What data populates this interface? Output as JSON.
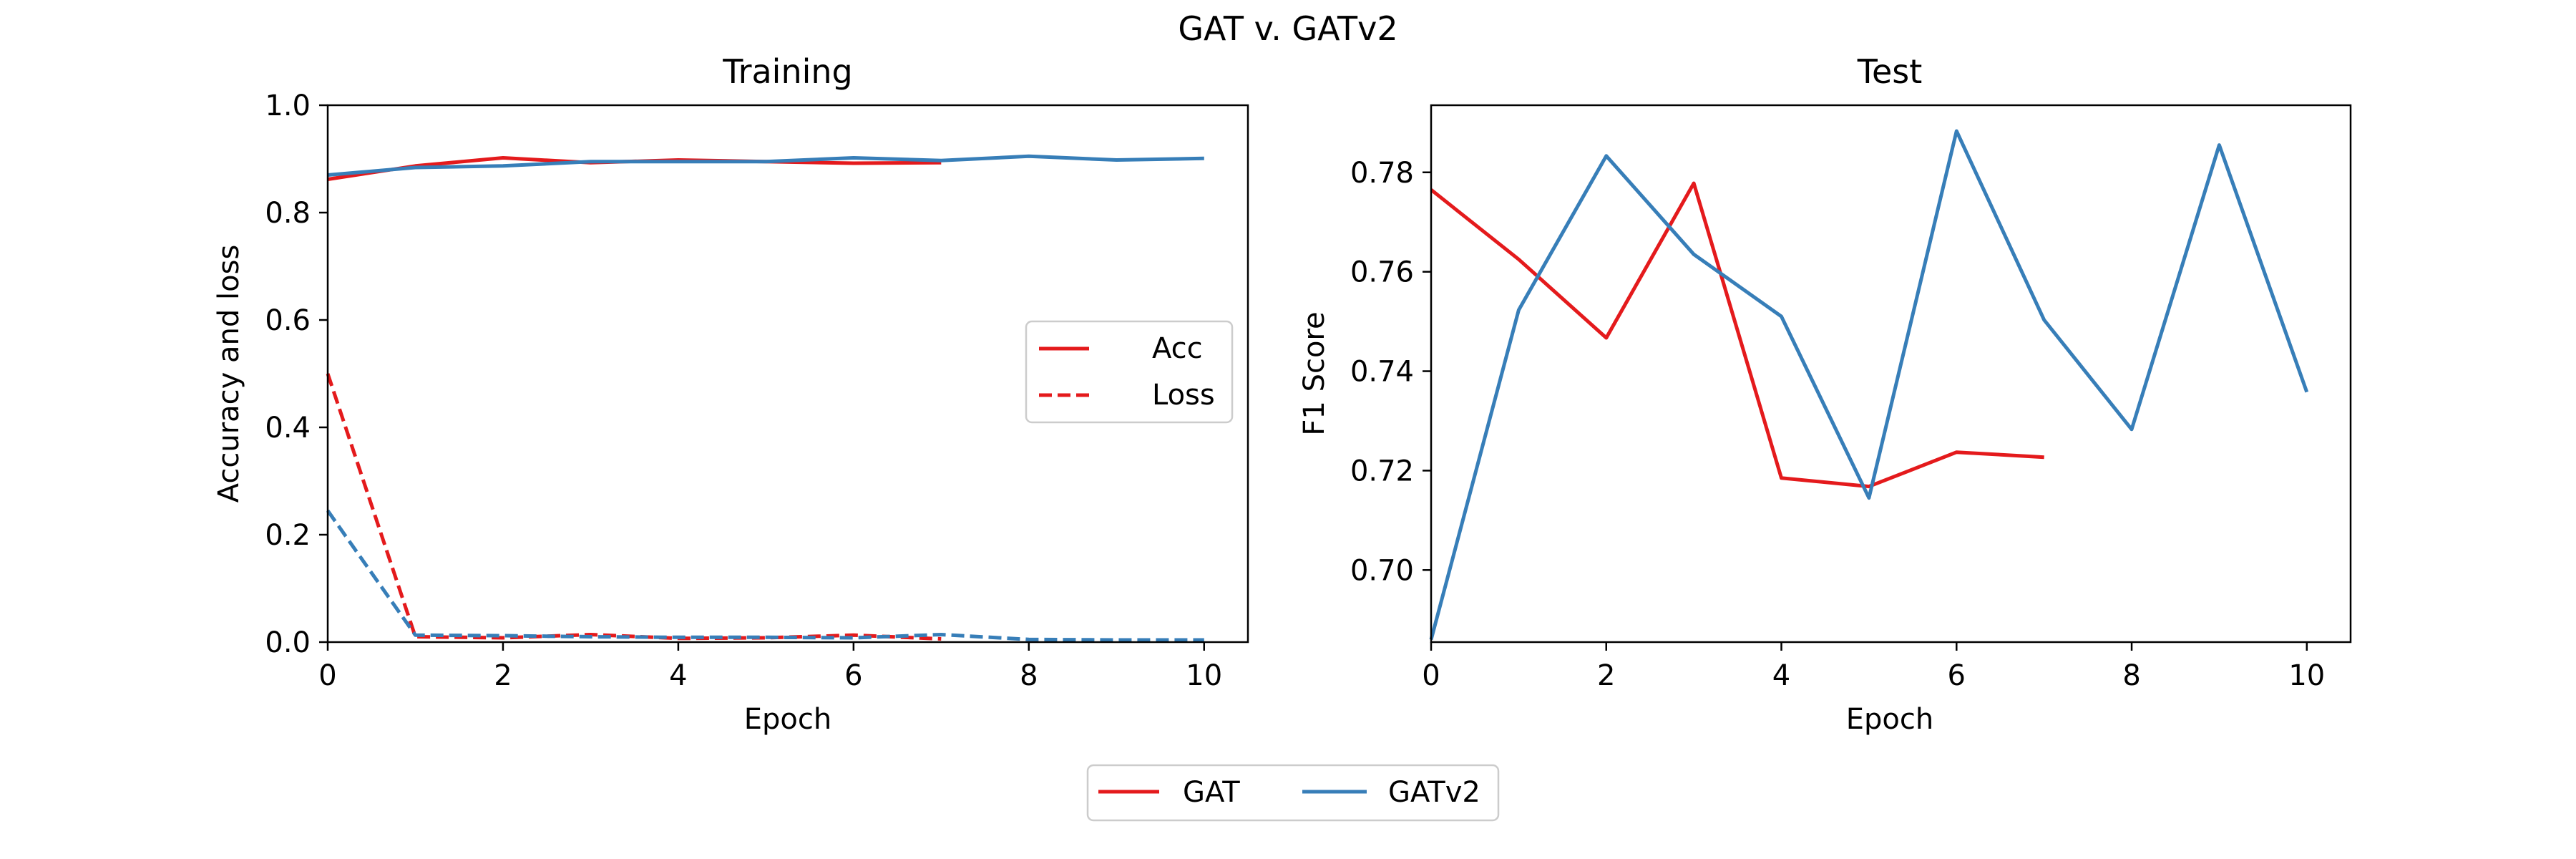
{
  "figure": {
    "suptitle": "GAT v. GATv2"
  },
  "colors": {
    "GAT": "#e41a1c",
    "GATv2": "#377eb8"
  },
  "legend_bottom": {
    "entries": [
      "GAT",
      "GATv2"
    ]
  },
  "chart_data": [
    {
      "type": "line",
      "title": "Training",
      "xlabel": "Epoch",
      "ylabel": "Accuracy and loss",
      "xlim": [
        -0.0,
        10.5
      ],
      "ylim": [
        0.0,
        1.0
      ],
      "xticks": [
        0,
        2,
        4,
        6,
        8,
        10
      ],
      "yticks": [
        0.0,
        0.2,
        0.4,
        0.6,
        0.8,
        1.0
      ],
      "ytick_labels": [
        "0.0",
        "0.2",
        "0.4",
        "0.6",
        "0.8",
        "1.0"
      ],
      "legend": {
        "placement": "center-right",
        "entries": [
          {
            "label": "Acc",
            "style": "solid"
          },
          {
            "label": "Loss",
            "style": "dashed"
          }
        ]
      },
      "series": [
        {
          "model": "GAT",
          "metric": "Acc",
          "style": "solid",
          "x": [
            0,
            1,
            2,
            3,
            4,
            5,
            6,
            7
          ],
          "y": [
            0.862,
            0.887,
            0.902,
            0.893,
            0.898,
            0.895,
            0.892,
            0.893
          ]
        },
        {
          "model": "GAT",
          "metric": "Loss",
          "style": "dashed",
          "x": [
            0,
            1,
            2,
            3,
            4,
            5,
            6,
            7
          ],
          "y": [
            0.5,
            0.01,
            0.008,
            0.014,
            0.007,
            0.008,
            0.013,
            0.006
          ]
        },
        {
          "model": "GATv2",
          "metric": "Acc",
          "style": "solid",
          "x": [
            0,
            1,
            2,
            3,
            4,
            5,
            6,
            7,
            8,
            9,
            10
          ],
          "y": [
            0.87,
            0.884,
            0.887,
            0.895,
            0.895,
            0.895,
            0.902,
            0.897,
            0.905,
            0.898,
            0.901
          ]
        },
        {
          "model": "GATv2",
          "metric": "Loss",
          "style": "dashed",
          "x": [
            0,
            1,
            2,
            3,
            4,
            5,
            6,
            7,
            8,
            9,
            10
          ],
          "y": [
            0.245,
            0.013,
            0.012,
            0.01,
            0.009,
            0.009,
            0.008,
            0.014,
            0.005,
            0.004,
            0.004
          ]
        }
      ]
    },
    {
      "type": "line",
      "title": "Test",
      "xlabel": "Epoch",
      "ylabel": "F1 Score",
      "xlim": [
        0.0,
        10.5
      ],
      "ylim": [
        0.6855,
        0.7935
      ],
      "xticks": [
        0,
        2,
        4,
        6,
        8,
        10
      ],
      "yticks": [
        0.7,
        0.72,
        0.74,
        0.76,
        0.78
      ],
      "ytick_labels": [
        "0.70",
        "0.72",
        "0.74",
        "0.76",
        "0.78"
      ],
      "series": [
        {
          "model": "GAT",
          "metric": "F1",
          "style": "solid",
          "x": [
            0,
            1,
            2,
            3,
            4,
            5,
            6,
            7
          ],
          "y": [
            0.7765,
            0.7625,
            0.7467,
            0.7778,
            0.7185,
            0.7168,
            0.7237,
            0.7227
          ]
        },
        {
          "model": "GATv2",
          "metric": "F1",
          "style": "solid",
          "x": [
            0,
            1,
            2,
            3,
            4,
            5,
            6,
            7,
            8,
            9,
            10
          ],
          "y": [
            0.686,
            0.7523,
            0.7833,
            0.7635,
            0.751,
            0.7145,
            0.7883,
            0.7503,
            0.7283,
            0.7855,
            0.7358
          ]
        }
      ]
    }
  ]
}
